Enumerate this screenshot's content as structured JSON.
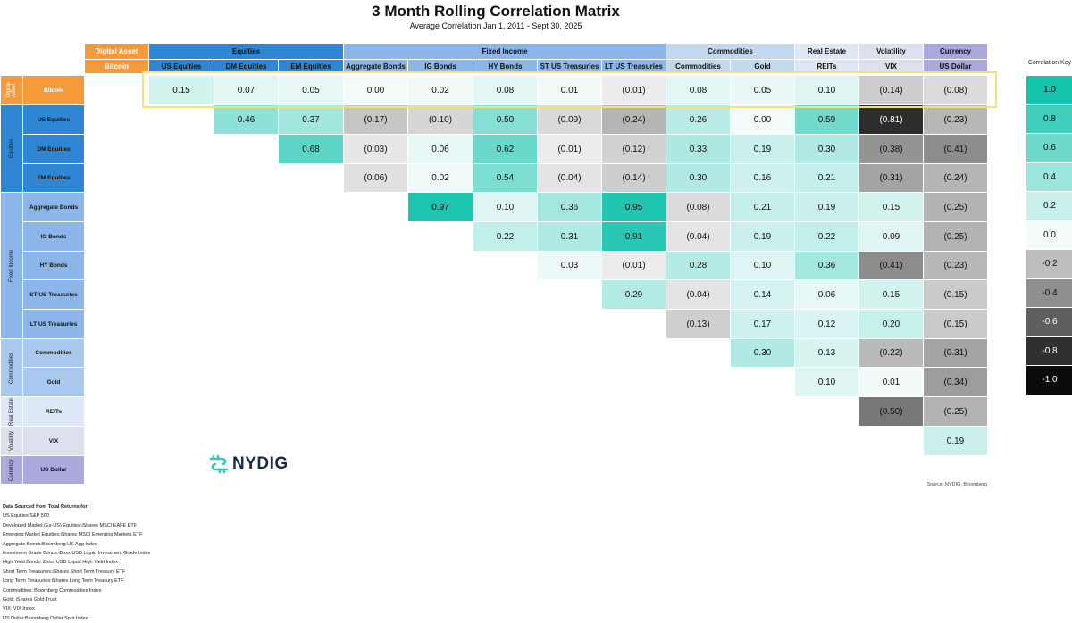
{
  "chart_data": {
    "type": "heatmap",
    "title": "3 Month Rolling Correlation Matrix",
    "subtitle": "Average Correlation Jan 1, 2011 - Sept 30, 2025",
    "colorscale_range": [
      -1.0,
      1.0
    ],
    "highlighted_row": "Bitcoin",
    "column_groups": [
      {
        "label": "Digital Asset",
        "color": "#f59a3a",
        "columns": [
          "Bitcoin"
        ]
      },
      {
        "label": "Equities",
        "color": "#2f86d3",
        "columns": [
          "US Equities",
          "DM Equities",
          "EM Equities"
        ]
      },
      {
        "label": "Fixed Income",
        "color": "#8cb6ea",
        "columns": [
          "Aggregate Bonds",
          "IG Bonds",
          "HY Bonds",
          "ST US Treasuries",
          "LT US Treasuries"
        ]
      },
      {
        "label": "Commodities",
        "color": "#c3d7ef",
        "columns": [
          "Commodities",
          "Gold"
        ]
      },
      {
        "label": "Real Estate",
        "color": "#dde7f5",
        "columns": [
          "REITs"
        ]
      },
      {
        "label": "Volatility",
        "color": "#dfe0ee",
        "columns": [
          "VIX"
        ]
      },
      {
        "label": "Currency",
        "color": "#a9a9dd",
        "columns": [
          "US Dollar"
        ]
      }
    ],
    "row_groups": [
      {
        "label": "Digital Asset",
        "color": "#f59a3a",
        "rows": [
          "Bitcoin"
        ]
      },
      {
        "label": "Equities",
        "color": "#2f86d3",
        "rows": [
          "US Equities",
          "DM Equities",
          "EM Equities"
        ]
      },
      {
        "label": "Fixed Income",
        "color": "#8cb6ea",
        "rows": [
          "Aggregate Bonds",
          "IG Bonds",
          "HY Bonds",
          "ST US Treasuries",
          "LT US Treasuries"
        ]
      },
      {
        "label": "Commodities",
        "color": "#a9c8ee",
        "rows": [
          "Commodities",
          "Gold"
        ]
      },
      {
        "label": "Real Estate",
        "color": "#dde9f8",
        "rows": [
          "REITs"
        ]
      },
      {
        "label": "Volatility",
        "color": "#dfe0ee",
        "rows": [
          "VIX"
        ]
      },
      {
        "label": "Currency",
        "color": "#a9a9dd",
        "rows": [
          "US Dollar"
        ]
      }
    ],
    "columns": [
      "US Equities",
      "DM Equities",
      "EM Equities",
      "Aggregate Bonds",
      "IG Bonds",
      "HY Bonds",
      "ST US Treasuries",
      "LT US Treasuries",
      "Commodities",
      "Gold",
      "REITs",
      "VIX",
      "US Dollar"
    ],
    "rows": [
      {
        "label": "Bitcoin",
        "start": 0,
        "values": [
          0.15,
          0.07,
          0.05,
          0.0,
          0.02,
          0.08,
          0.01,
          -0.01,
          0.08,
          0.05,
          0.1,
          -0.14,
          -0.08
        ]
      },
      {
        "label": "US Equities",
        "start": 1,
        "values": [
          0.46,
          0.37,
          -0.17,
          -0.1,
          0.5,
          -0.09,
          -0.24,
          0.26,
          0.0,
          0.59,
          -0.81,
          -0.23
        ]
      },
      {
        "label": "DM Equities",
        "start": 2,
        "values": [
          0.68,
          -0.03,
          0.06,
          0.62,
          -0.01,
          -0.12,
          0.33,
          0.19,
          0.3,
          -0.38,
          -0.41
        ]
      },
      {
        "label": "EM Equities",
        "start": 3,
        "values": [
          -0.06,
          0.02,
          0.54,
          -0.04,
          -0.14,
          0.3,
          0.16,
          0.21,
          -0.31,
          -0.24
        ]
      },
      {
        "label": "Aggregate Bonds",
        "start": 4,
        "values": [
          0.97,
          0.1,
          0.36,
          0.95,
          -0.08,
          0.21,
          0.19,
          0.15,
          -0.25
        ]
      },
      {
        "label": "IG Bonds",
        "start": 5,
        "values": [
          0.22,
          0.31,
          0.91,
          -0.04,
          0.19,
          0.22,
          0.09,
          -0.25
        ]
      },
      {
        "label": "HY Bonds",
        "start": 6,
        "values": [
          0.03,
          -0.01,
          0.28,
          0.1,
          0.36,
          -0.41,
          -0.23
        ]
      },
      {
        "label": "ST US Treasuries",
        "start": 7,
        "values": [
          0.29,
          -0.04,
          0.14,
          0.06,
          0.15,
          -0.15
        ]
      },
      {
        "label": "LT US Treasuries",
        "start": 8,
        "values": [
          -0.13,
          0.17,
          0.12,
          0.2,
          -0.15
        ]
      },
      {
        "label": "Commodities",
        "start": 9,
        "values": [
          0.3,
          0.13,
          -0.22,
          -0.31
        ]
      },
      {
        "label": "Gold",
        "start": 10,
        "values": [
          0.1,
          0.01,
          -0.34
        ]
      },
      {
        "label": "REITs",
        "start": 11,
        "values": [
          -0.5,
          -0.25
        ]
      },
      {
        "label": "VIX",
        "start": 12,
        "values": [
          0.19
        ]
      },
      {
        "label": "US Dollar",
        "start": 13,
        "values": []
      }
    ],
    "key": {
      "title": "Correlation Key",
      "values": [
        1.0,
        0.8,
        0.6,
        0.4,
        0.2,
        0.0,
        -0.2,
        -0.4,
        -0.6,
        -0.8,
        -1.0
      ]
    }
  },
  "logo_text": "NYDIG",
  "source_text": "Source: NYDIG, Bloomberg",
  "notes": {
    "heading": "Data Sourced from Total Returns for:",
    "lines": [
      "US Equities:S&P 500",
      "Developed Market (Ex-US) Equities:iShares MSCI EAFE ETF",
      "Emerging Market Equities:iShares MSCI Emerging Markets ETF",
      "Aggregate Bonds:Bloomberg US Agg Index",
      "Investment Grade Bonds:iBoxx USD Liquid Investment Grade Index",
      "High Yield Bonds: iBoxx USD Liquid High Yield Index",
      "Short Term Treasuries:iShares Short Term Treasury ETF",
      "Long Term Treasuries:iShares Long Term Treasury ETF",
      "Commodities: Bloomberg Commodities Index",
      "Gold: iShares Gold Trust",
      "VIX: VIX Index",
      "US Dollar:Bloomberg Dollar Spot Index"
    ]
  }
}
